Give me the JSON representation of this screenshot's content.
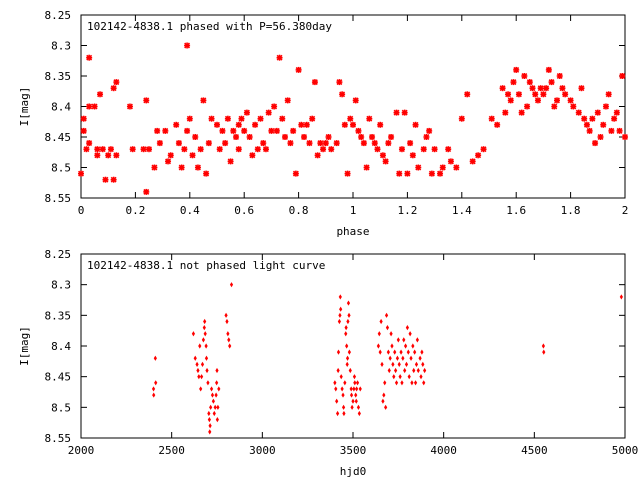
{
  "chart_data": [
    {
      "type": "scatter",
      "title": "102142-4838.1 phased with P=56.380day",
      "xlabel": "phase",
      "ylabel": "I[mag]",
      "xlim": [
        0,
        2
      ],
      "ylim": [
        8.25,
        8.55
      ],
      "y_inverted": true,
      "xticks": [
        "0",
        "0.2",
        "0.4",
        "0.6",
        "0.8",
        "1",
        "1.2",
        "1.4",
        "1.6",
        "1.8",
        "2"
      ],
      "yticks": [
        "8.25",
        "8.3",
        "8.35",
        "8.4",
        "8.45",
        "8.5",
        "8.55"
      ],
      "marker": "star",
      "color": "#ff0000",
      "points": [
        [
          0.0,
          8.51
        ],
        [
          0.01,
          8.42
        ],
        [
          0.01,
          8.44
        ],
        [
          0.02,
          8.47
        ],
        [
          0.03,
          8.32
        ],
        [
          0.03,
          8.4
        ],
        [
          0.03,
          8.46
        ],
        [
          0.05,
          8.4
        ],
        [
          0.06,
          8.47
        ],
        [
          0.06,
          8.48
        ],
        [
          0.07,
          8.38
        ],
        [
          0.08,
          8.47
        ],
        [
          0.09,
          8.52
        ],
        [
          0.1,
          8.48
        ],
        [
          0.11,
          8.47
        ],
        [
          0.12,
          8.37
        ],
        [
          0.12,
          8.52
        ],
        [
          0.13,
          8.36
        ],
        [
          0.13,
          8.48
        ],
        [
          0.18,
          8.4
        ],
        [
          0.19,
          8.47
        ],
        [
          0.23,
          8.47
        ],
        [
          0.24,
          8.54
        ],
        [
          0.24,
          8.39
        ],
        [
          0.25,
          8.47
        ],
        [
          0.27,
          8.5
        ],
        [
          0.28,
          8.44
        ],
        [
          0.29,
          8.46
        ],
        [
          0.31,
          8.44
        ],
        [
          0.32,
          8.49
        ],
        [
          0.33,
          8.48
        ],
        [
          0.35,
          8.43
        ],
        [
          0.36,
          8.46
        ],
        [
          0.37,
          8.5
        ],
        [
          0.38,
          8.47
        ],
        [
          0.39,
          8.44
        ],
        [
          0.39,
          8.3
        ],
        [
          0.4,
          8.42
        ],
        [
          0.41,
          8.48
        ],
        [
          0.42,
          8.45
        ],
        [
          0.43,
          8.5
        ],
        [
          0.44,
          8.47
        ],
        [
          0.45,
          8.39
        ],
        [
          0.46,
          8.51
        ],
        [
          0.47,
          8.46
        ],
        [
          0.48,
          8.42
        ],
        [
          0.5,
          8.43
        ],
        [
          0.51,
          8.47
        ],
        [
          0.52,
          8.44
        ],
        [
          0.53,
          8.46
        ],
        [
          0.54,
          8.42
        ],
        [
          0.55,
          8.49
        ],
        [
          0.56,
          8.44
        ],
        [
          0.57,
          8.45
        ],
        [
          0.58,
          8.43
        ],
        [
          0.58,
          8.47
        ],
        [
          0.59,
          8.42
        ],
        [
          0.6,
          8.44
        ],
        [
          0.61,
          8.41
        ],
        [
          0.62,
          8.45
        ],
        [
          0.63,
          8.48
        ],
        [
          0.64,
          8.43
        ],
        [
          0.65,
          8.47
        ],
        [
          0.66,
          8.42
        ],
        [
          0.67,
          8.46
        ],
        [
          0.68,
          8.47
        ],
        [
          0.69,
          8.41
        ],
        [
          0.7,
          8.44
        ],
        [
          0.71,
          8.4
        ],
        [
          0.72,
          8.44
        ],
        [
          0.73,
          8.32
        ],
        [
          0.74,
          8.42
        ],
        [
          0.75,
          8.45
        ],
        [
          0.76,
          8.39
        ],
        [
          0.77,
          8.46
        ],
        [
          0.78,
          8.44
        ],
        [
          0.79,
          8.51
        ],
        [
          0.8,
          8.34
        ],
        [
          0.81,
          8.43
        ],
        [
          0.82,
          8.45
        ],
        [
          0.83,
          8.43
        ],
        [
          0.84,
          8.46
        ],
        [
          0.85,
          8.42
        ],
        [
          0.86,
          8.36
        ],
        [
          0.87,
          8.48
        ],
        [
          0.88,
          8.46
        ],
        [
          0.89,
          8.47
        ],
        [
          0.9,
          8.46
        ],
        [
          0.91,
          8.45
        ],
        [
          0.92,
          8.47
        ],
        [
          0.94,
          8.46
        ],
        [
          0.95,
          8.36
        ],
        [
          0.96,
          8.38
        ],
        [
          0.97,
          8.43
        ],
        [
          0.98,
          8.51
        ],
        [
          0.99,
          8.42
        ],
        [
          1.0,
          8.43
        ],
        [
          1.01,
          8.39
        ],
        [
          1.02,
          8.44
        ],
        [
          1.03,
          8.45
        ],
        [
          1.04,
          8.46
        ],
        [
          1.05,
          8.5
        ],
        [
          1.06,
          8.42
        ],
        [
          1.07,
          8.45
        ],
        [
          1.08,
          8.46
        ],
        [
          1.09,
          8.47
        ],
        [
          1.1,
          8.43
        ],
        [
          1.11,
          8.48
        ],
        [
          1.12,
          8.49
        ],
        [
          1.13,
          8.46
        ],
        [
          1.14,
          8.45
        ],
        [
          1.16,
          8.41
        ],
        [
          1.17,
          8.51
        ],
        [
          1.18,
          8.47
        ],
        [
          1.19,
          8.41
        ],
        [
          1.2,
          8.51
        ],
        [
          1.21,
          8.46
        ],
        [
          1.22,
          8.48
        ],
        [
          1.23,
          8.43
        ],
        [
          1.24,
          8.5
        ],
        [
          1.26,
          8.47
        ],
        [
          1.27,
          8.45
        ],
        [
          1.28,
          8.44
        ],
        [
          1.29,
          8.51
        ],
        [
          1.3,
          8.47
        ],
        [
          1.32,
          8.51
        ],
        [
          1.33,
          8.5
        ],
        [
          1.35,
          8.47
        ],
        [
          1.36,
          8.49
        ],
        [
          1.38,
          8.5
        ],
        [
          1.4,
          8.42
        ],
        [
          1.42,
          8.38
        ],
        [
          1.44,
          8.49
        ],
        [
          1.46,
          8.48
        ],
        [
          1.48,
          8.47
        ],
        [
          1.51,
          8.42
        ],
        [
          1.53,
          8.43
        ],
        [
          1.55,
          8.37
        ],
        [
          1.56,
          8.41
        ],
        [
          1.57,
          8.38
        ],
        [
          1.58,
          8.39
        ],
        [
          1.59,
          8.36
        ],
        [
          1.6,
          8.34
        ],
        [
          1.61,
          8.38
        ],
        [
          1.62,
          8.41
        ],
        [
          1.63,
          8.35
        ],
        [
          1.64,
          8.4
        ],
        [
          1.65,
          8.36
        ],
        [
          1.66,
          8.37
        ],
        [
          1.67,
          8.38
        ],
        [
          1.68,
          8.39
        ],
        [
          1.69,
          8.37
        ],
        [
          1.7,
          8.38
        ],
        [
          1.71,
          8.37
        ],
        [
          1.72,
          8.34
        ],
        [
          1.73,
          8.36
        ],
        [
          1.74,
          8.4
        ],
        [
          1.75,
          8.39
        ],
        [
          1.76,
          8.35
        ],
        [
          1.77,
          8.37
        ],
        [
          1.78,
          8.38
        ],
        [
          1.8,
          8.39
        ],
        [
          1.81,
          8.4
        ],
        [
          1.83,
          8.41
        ],
        [
          1.84,
          8.37
        ],
        [
          1.85,
          8.42
        ],
        [
          1.86,
          8.43
        ],
        [
          1.87,
          8.44
        ],
        [
          1.88,
          8.42
        ],
        [
          1.89,
          8.46
        ],
        [
          1.9,
          8.41
        ],
        [
          1.91,
          8.45
        ],
        [
          1.92,
          8.43
        ],
        [
          1.93,
          8.4
        ],
        [
          1.94,
          8.38
        ],
        [
          1.95,
          8.44
        ],
        [
          1.96,
          8.42
        ],
        [
          1.97,
          8.41
        ],
        [
          1.98,
          8.44
        ],
        [
          1.99,
          8.35
        ],
        [
          2.0,
          8.45
        ]
      ]
    },
    {
      "type": "scatter",
      "title": "102142-4838.1 not phased light curve",
      "xlabel": "hjd0",
      "ylabel": "I[mag]",
      "xlim": [
        2000,
        5000
      ],
      "ylim": [
        8.25,
        8.55
      ],
      "y_inverted": true,
      "xticks": [
        "2000",
        "2500",
        "3000",
        "3500",
        "4000",
        "4500",
        "5000"
      ],
      "yticks": [
        "8.25",
        "8.3",
        "8.35",
        "8.4",
        "8.45",
        "8.5",
        "8.55"
      ],
      "marker": "diamond",
      "color": "#ff0000",
      "points": [
        [
          2400,
          8.47
        ],
        [
          2401,
          8.48
        ],
        [
          2410,
          8.42
        ],
        [
          2412,
          8.46
        ],
        [
          2620,
          8.38
        ],
        [
          2630,
          8.42
        ],
        [
          2640,
          8.43
        ],
        [
          2645,
          8.44
        ],
        [
          2650,
          8.45
        ],
        [
          2655,
          8.4
        ],
        [
          2660,
          8.47
        ],
        [
          2665,
          8.45
        ],
        [
          2670,
          8.43
        ],
        [
          2675,
          8.39
        ],
        [
          2680,
          8.37
        ],
        [
          2682,
          8.36
        ],
        [
          2685,
          8.38
        ],
        [
          2690,
          8.4
        ],
        [
          2692,
          8.42
        ],
        [
          2695,
          8.44
        ],
        [
          2700,
          8.46
        ],
        [
          2705,
          8.51
        ],
        [
          2708,
          8.52
        ],
        [
          2710,
          8.54
        ],
        [
          2712,
          8.53
        ],
        [
          2715,
          8.5
        ],
        [
          2720,
          8.47
        ],
        [
          2725,
          8.48
        ],
        [
          2730,
          8.49
        ],
        [
          2735,
          8.51
        ],
        [
          2740,
          8.5
        ],
        [
          2745,
          8.48
        ],
        [
          2748,
          8.46
        ],
        [
          2750,
          8.44
        ],
        [
          2752,
          8.52
        ],
        [
          2755,
          8.5
        ],
        [
          2760,
          8.47
        ],
        [
          2800,
          8.35
        ],
        [
          2805,
          8.36
        ],
        [
          2810,
          8.38
        ],
        [
          2815,
          8.39
        ],
        [
          2820,
          8.4
        ],
        [
          2830,
          8.3
        ],
        [
          3400,
          8.46
        ],
        [
          3405,
          8.47
        ],
        [
          3410,
          8.49
        ],
        [
          3415,
          8.51
        ],
        [
          3418,
          8.44
        ],
        [
          3420,
          8.41
        ],
        [
          3425,
          8.36
        ],
        [
          3428,
          8.35
        ],
        [
          3430,
          8.32
        ],
        [
          3432,
          8.34
        ],
        [
          3435,
          8.45
        ],
        [
          3440,
          8.47
        ],
        [
          3445,
          8.48
        ],
        [
          3448,
          8.5
        ],
        [
          3450,
          8.51
        ],
        [
          3455,
          8.46
        ],
        [
          3460,
          8.38
        ],
        [
          3462,
          8.37
        ],
        [
          3465,
          8.4
        ],
        [
          3468,
          8.43
        ],
        [
          3470,
          8.42
        ],
        [
          3472,
          8.36
        ],
        [
          3475,
          8.33
        ],
        [
          3478,
          8.35
        ],
        [
          3480,
          8.41
        ],
        [
          3485,
          8.44
        ],
        [
          3490,
          8.47
        ],
        [
          3492,
          8.48
        ],
        [
          3495,
          8.5
        ],
        [
          3500,
          8.49
        ],
        [
          3505,
          8.47
        ],
        [
          3508,
          8.45
        ],
        [
          3510,
          8.46
        ],
        [
          3515,
          8.48
        ],
        [
          3518,
          8.49
        ],
        [
          3520,
          8.47
        ],
        [
          3525,
          8.46
        ],
        [
          3530,
          8.5
        ],
        [
          3535,
          8.51
        ],
        [
          3540,
          8.47
        ],
        [
          3640,
          8.4
        ],
        [
          3645,
          8.38
        ],
        [
          3650,
          8.41
        ],
        [
          3655,
          8.36
        ],
        [
          3660,
          8.43
        ],
        [
          3665,
          8.49
        ],
        [
          3670,
          8.48
        ],
        [
          3675,
          8.46
        ],
        [
          3680,
          8.5
        ],
        [
          3685,
          8.35
        ],
        [
          3690,
          8.37
        ],
        [
          3695,
          8.41
        ],
        [
          3700,
          8.44
        ],
        [
          3705,
          8.42
        ],
        [
          3710,
          8.38
        ],
        [
          3715,
          8.4
        ],
        [
          3720,
          8.43
        ],
        [
          3725,
          8.45
        ],
        [
          3730,
          8.41
        ],
        [
          3735,
          8.44
        ],
        [
          3740,
          8.46
        ],
        [
          3745,
          8.42
        ],
        [
          3750,
          8.39
        ],
        [
          3755,
          8.43
        ],
        [
          3760,
          8.45
        ],
        [
          3765,
          8.41
        ],
        [
          3770,
          8.46
        ],
        [
          3775,
          8.42
        ],
        [
          3780,
          8.39
        ],
        [
          3785,
          8.44
        ],
        [
          3790,
          8.4
        ],
        [
          3795,
          8.43
        ],
        [
          3800,
          8.37
        ],
        [
          3805,
          8.41
        ],
        [
          3810,
          8.45
        ],
        [
          3815,
          8.38
        ],
        [
          3820,
          8.42
        ],
        [
          3825,
          8.46
        ],
        [
          3830,
          8.4
        ],
        [
          3835,
          8.44
        ],
        [
          3840,
          8.41
        ],
        [
          3845,
          8.46
        ],
        [
          3850,
          8.43
        ],
        [
          3855,
          8.39
        ],
        [
          3860,
          8.44
        ],
        [
          3870,
          8.42
        ],
        [
          3875,
          8.45
        ],
        [
          3880,
          8.41
        ],
        [
          3885,
          8.43
        ],
        [
          3890,
          8.46
        ],
        [
          3895,
          8.44
        ],
        [
          4550,
          8.4
        ],
        [
          4552,
          8.41
        ],
        [
          4980,
          8.32
        ]
      ]
    }
  ]
}
